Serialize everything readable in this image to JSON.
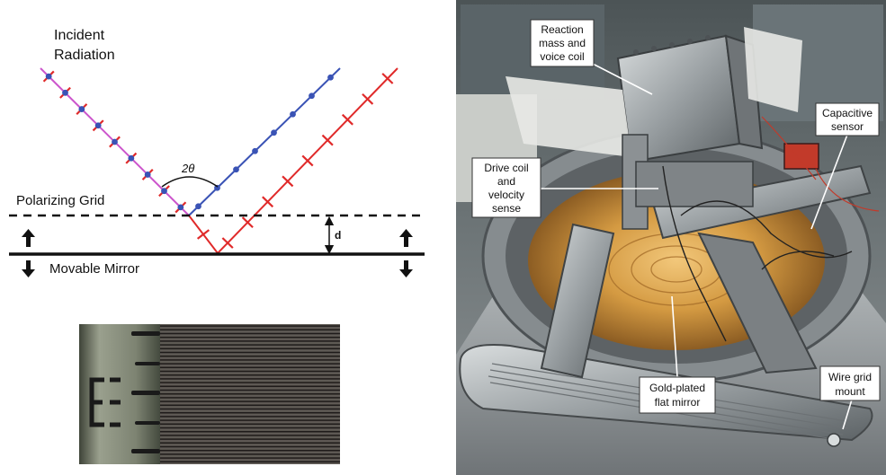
{
  "diagram": {
    "incident_label_line1": "Incident",
    "incident_label_line2": "Radiation",
    "angle_label": "2θ",
    "grid_label": "Polarizing Grid",
    "mirror_label": "Movable Mirror",
    "distance_label": "d",
    "colors": {
      "blue": "#3a53b5",
      "red": "#e02a2a",
      "magenta": "#cc55cc"
    }
  },
  "photo_callouts": {
    "reaction_mass": [
      "Reaction",
      "mass and",
      "voice coil"
    ],
    "capacitive_sensor": [
      "Capacitive",
      "sensor"
    ],
    "drive_coil": [
      "Drive coil",
      "and",
      "velocity",
      "sense"
    ],
    "gold_mirror": [
      "Gold-plated",
      "flat mirror"
    ],
    "wire_grid_mount": [
      "Wire grid",
      "mount"
    ]
  }
}
